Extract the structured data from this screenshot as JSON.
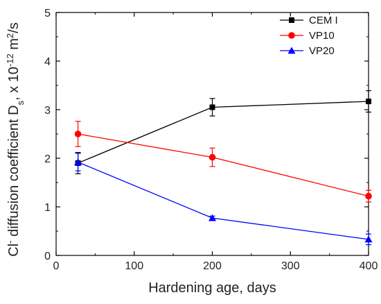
{
  "chart_data": {
    "type": "line",
    "xlabel": "Hardening age, days",
    "ylabel": {
      "parts": [
        "Cl",
        "-",
        " diffusion coefficient D",
        "s",
        ", x 10",
        "-12",
        " m",
        "2",
        "/s"
      ]
    },
    "xlim": [
      0,
      400
    ],
    "ylim": [
      0,
      5
    ],
    "x_ticks": [
      0,
      100,
      200,
      300,
      400
    ],
    "y_ticks": [
      0,
      1,
      2,
      3,
      4,
      5
    ],
    "x_tick_labels": [
      "0",
      "100",
      "200",
      "300",
      "400"
    ],
    "y_tick_labels": [
      "0",
      "1",
      "2",
      "3",
      "4",
      "5"
    ],
    "grid": false,
    "legend_position": "top-right",
    "series": [
      {
        "name": "CEM I",
        "color": "#000000",
        "marker": "square",
        "x": [
          28,
          200,
          400
        ],
        "y": [
          1.9,
          3.05,
          3.17
        ],
        "error": [
          0.22,
          0.18,
          0.22
        ]
      },
      {
        "name": "VP10",
        "color": "#ff0000",
        "marker": "circle",
        "x": [
          28,
          200,
          400
        ],
        "y": [
          2.5,
          2.02,
          1.22
        ],
        "error": [
          0.26,
          0.19,
          0.12
        ]
      },
      {
        "name": "VP20",
        "color": "#0000ff",
        "marker": "triangle",
        "x": [
          28,
          200,
          400
        ],
        "y": [
          1.92,
          0.77,
          0.33
        ],
        "error": [
          0.18,
          0.04,
          0.11
        ]
      }
    ]
  }
}
